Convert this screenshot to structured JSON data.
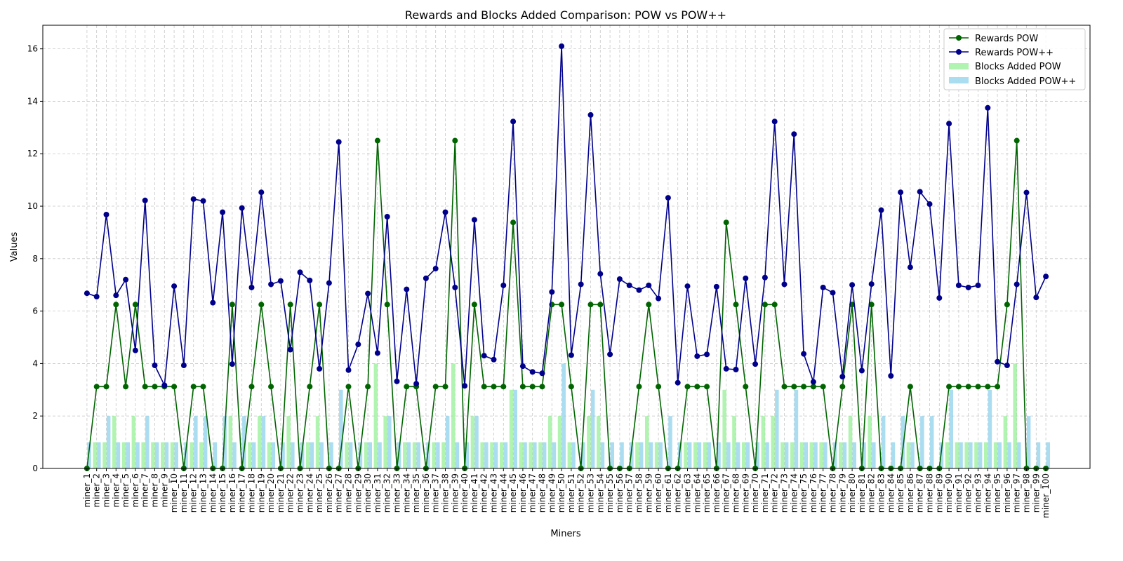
{
  "chart_data": {
    "type": "bar",
    "title": "Rewards and Blocks Added Comparison: POW vs POW++",
    "xlabel": "Miners",
    "ylabel": "Values",
    "ylim": [
      0,
      16.9
    ],
    "yticks": [
      0,
      2,
      4,
      6,
      8,
      10,
      12,
      14,
      16
    ],
    "grid": true,
    "legend_position": "top-right",
    "categories": [
      "miner_1",
      "miner_2",
      "miner_3",
      "miner_4",
      "miner_5",
      "miner_6",
      "miner_7",
      "miner_8",
      "miner_9",
      "miner_10",
      "miner_11",
      "miner_12",
      "miner_13",
      "miner_14",
      "miner_15",
      "miner_16",
      "miner_17",
      "miner_18",
      "miner_19",
      "miner_20",
      "miner_21",
      "miner_22",
      "miner_23",
      "miner_24",
      "miner_25",
      "miner_26",
      "miner_27",
      "miner_28",
      "miner_29",
      "miner_30",
      "miner_31",
      "miner_32",
      "miner_33",
      "miner_34",
      "miner_35",
      "miner_36",
      "miner_37",
      "miner_38",
      "miner_39",
      "miner_40",
      "miner_41",
      "miner_42",
      "miner_43",
      "miner_44",
      "miner_45",
      "miner_46",
      "miner_47",
      "miner_48",
      "miner_49",
      "miner_50",
      "miner_51",
      "miner_52",
      "miner_53",
      "miner_54",
      "miner_55",
      "miner_56",
      "miner_57",
      "miner_58",
      "miner_59",
      "miner_60",
      "miner_61",
      "miner_62",
      "miner_63",
      "miner_64",
      "miner_65",
      "miner_66",
      "miner_67",
      "miner_68",
      "miner_69",
      "miner_70",
      "miner_71",
      "miner_72",
      "miner_73",
      "miner_74",
      "miner_75",
      "miner_76",
      "miner_77",
      "miner_78",
      "miner_79",
      "miner_80",
      "miner_81",
      "miner_82",
      "miner_83",
      "miner_84",
      "miner_85",
      "miner_86",
      "miner_87",
      "miner_88",
      "miner_89",
      "miner_90",
      "miner_91",
      "miner_92",
      "miner_93",
      "miner_94",
      "miner_95",
      "miner_96",
      "miner_97",
      "miner_98",
      "miner_99",
      "miner_100"
    ],
    "series": [
      {
        "name": "Rewards POW",
        "kind": "line",
        "color": "#006400",
        "values": [
          0,
          3.12,
          3.12,
          6.25,
          3.12,
          6.25,
          3.12,
          3.12,
          3.12,
          3.12,
          0,
          3.12,
          3.12,
          0,
          0,
          6.25,
          0,
          3.12,
          6.25,
          3.12,
          0,
          6.25,
          0,
          3.12,
          6.25,
          0,
          0,
          3.12,
          0,
          3.12,
          12.5,
          6.25,
          0,
          3.12,
          3.12,
          0,
          3.12,
          3.12,
          12.5,
          0,
          6.25,
          3.12,
          3.12,
          3.12,
          9.38,
          3.12,
          3.12,
          3.12,
          6.25,
          6.25,
          3.12,
          0,
          6.25,
          6.25,
          0,
          0,
          0,
          3.12,
          6.25,
          3.12,
          0,
          0,
          3.12,
          3.12,
          3.12,
          0,
          9.38,
          6.25,
          3.12,
          0,
          6.25,
          6.25,
          3.12,
          3.12,
          3.12,
          3.12,
          3.12,
          0,
          3.12,
          6.25,
          0,
          6.25,
          0,
          0,
          0,
          3.12,
          0,
          0,
          0,
          3.12,
          3.12,
          3.12,
          3.12,
          3.12,
          3.12,
          6.25,
          12.5,
          0,
          0,
          0
        ]
      },
      {
        "name": "Rewards POW++",
        "kind": "line",
        "color": "#00008B",
        "values": [
          6.68,
          6.55,
          9.68,
          6.6,
          7.2,
          4.5,
          10.22,
          3.93,
          3.17,
          6.95,
          3.93,
          10.27,
          10.2,
          6.32,
          9.77,
          3.98,
          9.93,
          6.9,
          10.53,
          7.02,
          7.15,
          4.53,
          7.48,
          7.17,
          3.8,
          7.07,
          12.45,
          3.75,
          4.73,
          6.67,
          4.4,
          9.6,
          3.32,
          6.83,
          3.23,
          7.25,
          7.62,
          9.77,
          6.9,
          3.15,
          9.48,
          4.3,
          4.15,
          6.98,
          13.23,
          3.9,
          3.68,
          3.63,
          6.73,
          16.1,
          4.32,
          7.02,
          13.48,
          7.42,
          4.35,
          7.22,
          6.98,
          6.8,
          6.98,
          6.48,
          10.32,
          3.27,
          6.95,
          4.28,
          4.35,
          6.93,
          3.8,
          3.77,
          7.25,
          3.98,
          7.28,
          13.23,
          7.02,
          12.75,
          4.37,
          3.3,
          6.9,
          6.7,
          3.5,
          7.0,
          3.73,
          7.03,
          9.85,
          3.53,
          10.53,
          7.67,
          10.55,
          10.08,
          6.5,
          13.15,
          6.98,
          6.9,
          6.98,
          13.75,
          4.07,
          3.93,
          7.02,
          10.52,
          6.52,
          7.32
        ]
      },
      {
        "name": "Blocks Added POW",
        "kind": "bar",
        "color": "#90EE90",
        "values": [
          0,
          1,
          1,
          2,
          1,
          2,
          1,
          1,
          1,
          1,
          0,
          1,
          1,
          0,
          0,
          2,
          0,
          1,
          2,
          1,
          0,
          2,
          0,
          1,
          2,
          0,
          0,
          1,
          0,
          1,
          4,
          2,
          0,
          1,
          1,
          0,
          1,
          1,
          4,
          0,
          2,
          1,
          1,
          1,
          3,
          1,
          1,
          1,
          2,
          2,
          1,
          0,
          2,
          2,
          0,
          0,
          0,
          1,
          2,
          1,
          0,
          0,
          1,
          1,
          1,
          0,
          3,
          2,
          1,
          0,
          2,
          2,
          1,
          1,
          1,
          1,
          1,
          0,
          1,
          2,
          0,
          2,
          0,
          0,
          0,
          1,
          0,
          0,
          0,
          1,
          1,
          1,
          1,
          1,
          1,
          2,
          4,
          0,
          0,
          0
        ]
      },
      {
        "name": "Blocks Added POW++",
        "kind": "bar",
        "color": "#87CEEB",
        "values": [
          1,
          1,
          2,
          1,
          1,
          1,
          2,
          1,
          1,
          1,
          1,
          2,
          2,
          1,
          2,
          1,
          2,
          1,
          2,
          1,
          1,
          1,
          1,
          1,
          1,
          1,
          3,
          1,
          1,
          1,
          1,
          2,
          1,
          1,
          1,
          1,
          1,
          2,
          1,
          1,
          2,
          1,
          1,
          1,
          3,
          1,
          1,
          1,
          1,
          4,
          1,
          1,
          3,
          1,
          1,
          1,
          1,
          1,
          1,
          1,
          2,
          1,
          1,
          1,
          1,
          1,
          1,
          1,
          1,
          1,
          1,
          3,
          1,
          3,
          1,
          1,
          1,
          1,
          1,
          1,
          1,
          1,
          2,
          1,
          2,
          1,
          2,
          2,
          1,
          3,
          1,
          1,
          1,
          3,
          1,
          1,
          1,
          2,
          1,
          1
        ]
      }
    ]
  }
}
